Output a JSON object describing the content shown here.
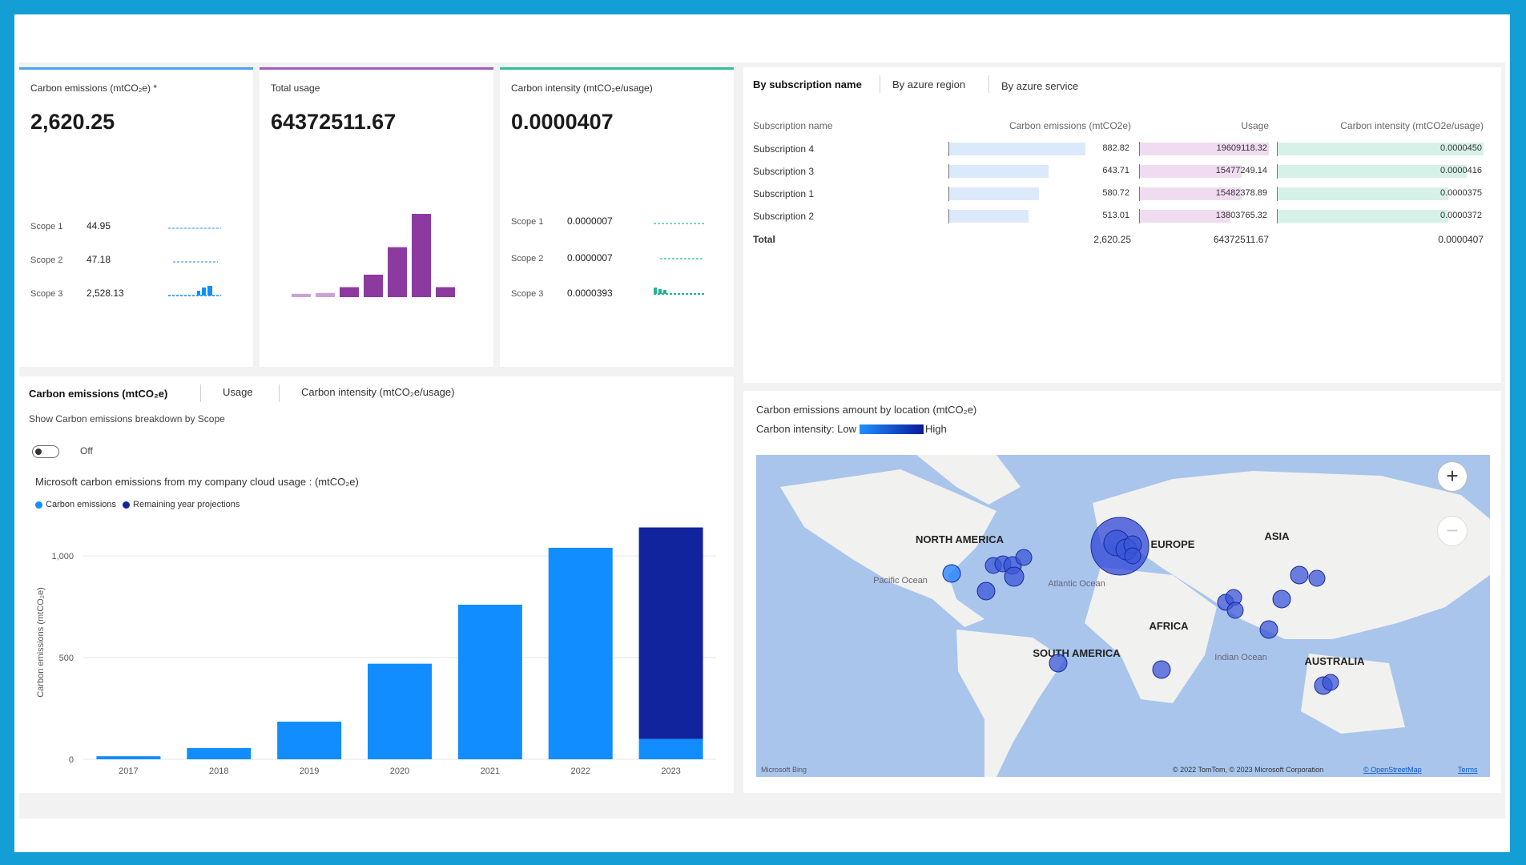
{
  "kpis": [
    {
      "title": "Carbon emissions (mtCO₂e) *",
      "value": "2,620.25",
      "accent": "#4aa3f2",
      "scopes": [
        {
          "label": "Scope 1",
          "value": "44.95"
        },
        {
          "label": "Scope 2",
          "value": "47.18"
        },
        {
          "label": "Scope 3",
          "value": "2,528.13"
        }
      ]
    },
    {
      "title": "Total usage",
      "value": "64372511.67",
      "accent": "#a25bc1"
    },
    {
      "title": "Carbon intensity (mtCO₂e/usage)",
      "value": "0.0000407",
      "accent": "#2fbf9f",
      "scopes": [
        {
          "label": "Scope 1",
          "value": "0.0000007"
        },
        {
          "label": "Scope 2",
          "value": "0.0000007"
        },
        {
          "label": "Scope 3",
          "value": "0.0000393"
        }
      ]
    }
  ],
  "usage_sparkbars": [
    0.04,
    0.05,
    0.12,
    0.27,
    0.6,
    1.0,
    0.12
  ],
  "sub_tabs": [
    "By subscription name",
    "By azure region",
    "By azure service"
  ],
  "sub_table": {
    "headers": [
      "Subscription name",
      "Carbon emissions (mtCO2e)",
      "Usage",
      "Carbon intensity (mtCO2e/usage)"
    ],
    "rows": [
      {
        "name": "Subscription 4",
        "emissions": "882.82",
        "usage": "19609118.32",
        "intensity": "0.0000450",
        "ef": 1.0,
        "uf": 1.0,
        "if": 1.0
      },
      {
        "name": "Subscription 3",
        "emissions": "643.71",
        "usage": "15477249.14",
        "intensity": "0.0000416",
        "ef": 0.73,
        "uf": 0.79,
        "if": 0.92
      },
      {
        "name": "Subscription 1",
        "emissions": "580.72",
        "usage": "15482378.89",
        "intensity": "0.0000375",
        "ef": 0.66,
        "uf": 0.79,
        "if": 0.83
      },
      {
        "name": "Subscription 2",
        "emissions": "513.01",
        "usage": "13803765.32",
        "intensity": "0.0000372",
        "ef": 0.58,
        "uf": 0.7,
        "if": 0.83
      }
    ],
    "total": {
      "label": "Total",
      "emissions": "2,620.25",
      "usage": "64372511.67",
      "intensity": "0.0000407"
    }
  },
  "chart_tabs": [
    "Carbon emissions (mtCO₂e)",
    "Usage",
    "Carbon intensity (mtCO₂e/usage)"
  ],
  "toggle": {
    "caption": "Show Carbon emissions breakdown by Scope",
    "state": "Off"
  },
  "map": {
    "title": "Carbon emissions amount by location (mtCO₂e)",
    "legend_prefix": "Carbon intensity: Low",
    "legend_suffix": "High",
    "labels": [
      "NORTH AMERICA",
      "EUROPE",
      "ASIA",
      "AFRICA",
      "SOUTH AMERICA",
      "AUSTRALIA"
    ],
    "oceans": [
      "Pacific Ocean",
      "Atlantic Ocean",
      "Indian Ocean"
    ],
    "footer_left": "Microsoft Bing",
    "footer_right": "© 2022 TomTom, © 2023 Microsoft Corporation",
    "footer_link1": "© OpenStreetMap",
    "footer_link2": "Terms",
    "zoom_in": "+",
    "zoom_out": "−"
  },
  "chart_data": {
    "type": "bar",
    "title": "Microsoft carbon emissions from my company cloud usage : (mtCO₂e)",
    "ylabel": "Carbon emissions (mtCO₂e)",
    "categories": [
      "2017",
      "2018",
      "2019",
      "2020",
      "2021",
      "2022",
      "2023"
    ],
    "series": [
      {
        "name": "Carbon emissions",
        "color": "#118dff",
        "values": [
          15,
          55,
          185,
          470,
          760,
          1040,
          100
        ]
      },
      {
        "name": "Remaining year projections",
        "color": "#12239e",
        "values": [
          0,
          0,
          0,
          0,
          0,
          0,
          1040
        ]
      }
    ],
    "ylim": [
      0,
      1150
    ],
    "yticks": [
      0,
      500,
      1000
    ],
    "ytick_labels": [
      "0",
      "500",
      "1,000"
    ],
    "stacked": true,
    "grid": true,
    "legend": "top-left"
  },
  "colors": {
    "emissions": "#118dff",
    "usage": "#8c3aa0",
    "intensity": "#21b597"
  }
}
